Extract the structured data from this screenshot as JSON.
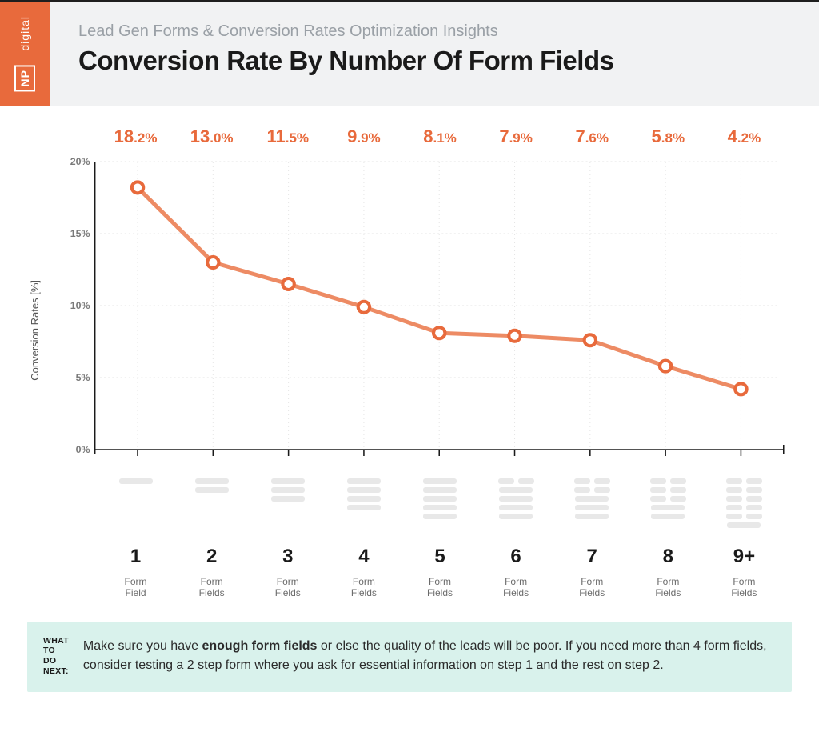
{
  "brand": {
    "logo_top": "digital",
    "logo_mark": "NP",
    "logo_bg": "#e86a3c",
    "logo_fg": "#ffffff"
  },
  "header": {
    "subtitle": "Lead Gen Forms & Conversion Rates Optimization Insights",
    "title": "Conversion Rate By Number Of Form Fields",
    "background_color": "#f1f2f3",
    "subtitle_color": "#9aa0a6",
    "subtitle_fontsize": 20,
    "title_fontsize": 33
  },
  "chart": {
    "type": "line",
    "ylabel": "Conversion Rates [%]",
    "ylim": [
      0,
      20
    ],
    "ytick_step": 5,
    "yticks": [
      "0%",
      "5%",
      "10%",
      "15%",
      "20%"
    ],
    "categories": [
      "1",
      "2",
      "3",
      "4",
      "5",
      "6",
      "7",
      "8",
      "9+"
    ],
    "category_sublabels": [
      "Form\nField",
      "Form\nFields",
      "Form\nFields",
      "Form\nFields",
      "Form\nFields",
      "Form\nFields",
      "Form\nFields",
      "Form\nFields",
      "Form\nFields"
    ],
    "values": [
      18.2,
      13.0,
      11.5,
      9.9,
      8.1,
      7.9,
      7.6,
      5.8,
      4.2
    ],
    "value_labels": [
      {
        "int": "18",
        "dec": ".2%"
      },
      {
        "int": "13",
        "dec": ".0%"
      },
      {
        "int": "11",
        "dec": ".5%"
      },
      {
        "int": "9",
        "dec": ".9%"
      },
      {
        "int": "8",
        "dec": ".1%"
      },
      {
        "int": "7",
        "dec": ".9%"
      },
      {
        "int": "7",
        "dec": ".6%"
      },
      {
        "int": "5",
        "dec": ".8%"
      },
      {
        "int": "4",
        "dec": ".2%"
      }
    ],
    "form_icon_rows": [
      1,
      2,
      3,
      4,
      5,
      5,
      5,
      5,
      6
    ],
    "form_icon_layouts": [
      [
        "w1"
      ],
      [
        "w1",
        "w1"
      ],
      [
        "w1",
        "w1",
        "w1"
      ],
      [
        "w1",
        "w1",
        "w1",
        "w1"
      ],
      [
        "w1",
        "w1",
        "w1",
        "w1",
        "w1"
      ],
      [
        "pair",
        "w1",
        "w1",
        "w1",
        "w1"
      ],
      [
        "pair",
        "pair",
        "w1",
        "w1",
        "w1"
      ],
      [
        "pair",
        "pair",
        "pair",
        "w1",
        "w1"
      ],
      [
        "pair",
        "pair",
        "pair",
        "pair",
        "pair",
        "w1"
      ]
    ],
    "line_color": "#ed8b64",
    "line_width": 5,
    "marker_stroke": "#e86a3c",
    "marker_fill": "#ffffff",
    "marker_radius": 7,
    "marker_stroke_width": 4,
    "grid_color": "#e5e5e5",
    "axis_color": "#1a1a1a",
    "label_color": "#e86a3c",
    "label_fontsize": 22,
    "background_color": "#ffffff"
  },
  "tip": {
    "label": "WHAT TO\nDO NEXT:",
    "text_before": "Make sure you have ",
    "text_bold": "enough form fields",
    "text_after": " or else the quality of the leads will be poor. If you need more than 4 form fields, consider testing a 2 step form where you ask for essential information on step 1 and the rest on step 2.",
    "background_color": "#d9f2ec"
  }
}
